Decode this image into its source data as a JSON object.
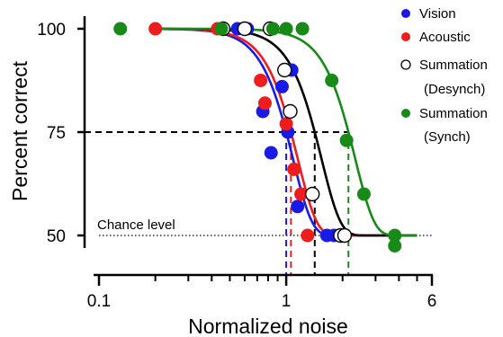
{
  "chart_data": {
    "type": "scatter",
    "xlabel": "Normalized noise",
    "ylabel": "Percent correct",
    "x_scale": "log",
    "xlim": [
      0.1,
      6
    ],
    "ylim": [
      48,
      101
    ],
    "x_ticks": [
      0.1,
      1,
      6
    ],
    "x_tick_labels": [
      "0.1",
      "1",
      "6"
    ],
    "y_ticks": [
      50,
      75,
      100
    ],
    "y_tick_labels": [
      "50",
      "75",
      "100"
    ],
    "grid": false,
    "legend_position": "top-right",
    "chance_level": {
      "label": "Chance level",
      "y": 50
    },
    "threshold_level": 75,
    "series": [
      {
        "name": "Vision",
        "color": "#1a1ae6",
        "marker": "filled-circle",
        "points": [
          [
            0.55,
            100
          ],
          [
            0.62,
            100
          ],
          [
            0.75,
            80
          ],
          [
            0.83,
            70
          ],
          [
            0.95,
            86
          ],
          [
            1.02,
            75
          ],
          [
            1.07,
            90
          ],
          [
            1.15,
            57
          ],
          [
            1.65,
            50
          ],
          [
            1.8,
            50
          ]
        ],
        "fit": {
          "threshold": 1.0,
          "slope": 4.3
        },
        "threshold_x": 1.0
      },
      {
        "name": "Acoustic",
        "color": "#ee1c1c",
        "marker": "filled-circle",
        "points": [
          [
            0.2,
            100
          ],
          [
            0.43,
            100
          ],
          [
            0.6,
            100
          ],
          [
            0.73,
            87.5
          ],
          [
            0.77,
            82
          ],
          [
            1.0,
            77
          ],
          [
            1.1,
            66
          ],
          [
            1.2,
            60
          ],
          [
            1.3,
            50
          ]
        ],
        "fit": {
          "threshold": 1.06,
          "slope": 4.3
        },
        "threshold_x": 1.06
      },
      {
        "name": "Summation (Desynch)",
        "legend_lines": [
          "Summation",
          "(Desynch)"
        ],
        "color": "#000000",
        "marker": "open-circle",
        "points": [
          [
            0.46,
            100
          ],
          [
            0.6,
            100
          ],
          [
            0.82,
            100
          ],
          [
            0.98,
            90
          ],
          [
            1.05,
            80
          ],
          [
            1.38,
            60
          ],
          [
            1.95,
            50
          ],
          [
            2.05,
            50
          ]
        ],
        "fit": {
          "threshold": 1.42,
          "slope": 4.3
        },
        "threshold_x": 1.42
      },
      {
        "name": "Summation (Synch)",
        "legend_lines": [
          "Summation",
          "(Synch)"
        ],
        "color": "#178a17",
        "marker": "filled-circle",
        "points": [
          [
            0.13,
            100
          ],
          [
            0.45,
            100
          ],
          [
            0.85,
            100
          ],
          [
            1.0,
            100
          ],
          [
            1.22,
            100
          ],
          [
            1.75,
            87.5
          ],
          [
            2.1,
            73
          ],
          [
            2.6,
            60
          ],
          [
            3.8,
            50
          ],
          [
            3.8,
            47.5
          ]
        ],
        "fit": {
          "threshold": 2.15,
          "slope": 4.3
        },
        "threshold_x": 2.15
      }
    ]
  }
}
